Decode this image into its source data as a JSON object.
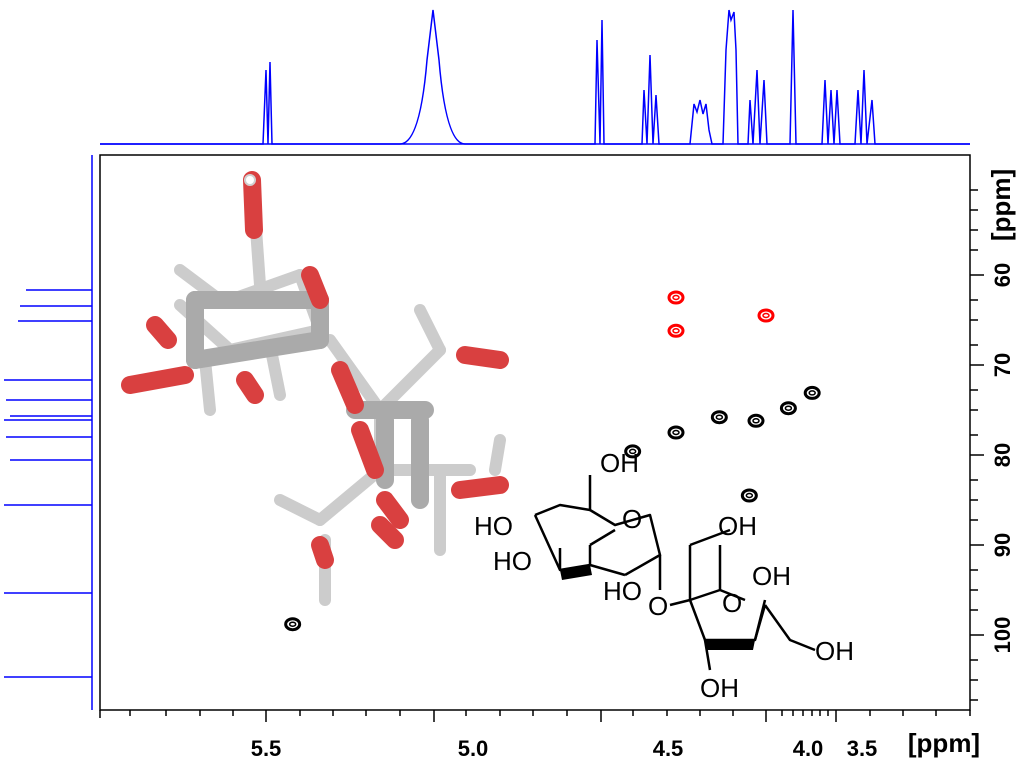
{
  "chart_data": {
    "type": "scatter",
    "x_axis": {
      "label": "[ppm]",
      "direction": "reversed",
      "ticks": [
        "5.5",
        "5.0",
        "4.5",
        "4.0",
        "3.5"
      ]
    },
    "y_axis": {
      "label": "[ppm]",
      "direction": "increasing-downward",
      "ticks": [
        "60",
        "70",
        "80",
        "90",
        "100"
      ]
    },
    "series": [
      {
        "color": "#000000",
        "points": [
          {
            "x": 5.42,
            "y": 98.8
          },
          {
            "x": 4.4,
            "y": 79.6
          },
          {
            "x": 4.27,
            "y": 77.5
          },
          {
            "x": 4.14,
            "y": 75.8
          },
          {
            "x": 4.03,
            "y": 76.2
          },
          {
            "x": 3.84,
            "y": 74.8
          },
          {
            "x": 3.67,
            "y": 73.1
          },
          {
            "x": 4.05,
            "y": 84.5
          }
        ]
      },
      {
        "color": "#ff0000",
        "points": [
          {
            "x": 4.27,
            "y": 62.5
          },
          {
            "x": 4.27,
            "y": 66.2
          },
          {
            "x": 4.0,
            "y": 64.5
          }
        ]
      }
    ],
    "projection_color": "#0000ff"
  },
  "structure": {
    "labels": [
      "OH",
      "HO",
      "HO",
      "HO",
      "OH",
      "OH",
      "OH",
      "OH",
      "O",
      "O",
      "O"
    ]
  },
  "colors": {
    "oxygen": "#d94040",
    "carbon": "#cccccc",
    "hydrogen": "#ffffff"
  }
}
